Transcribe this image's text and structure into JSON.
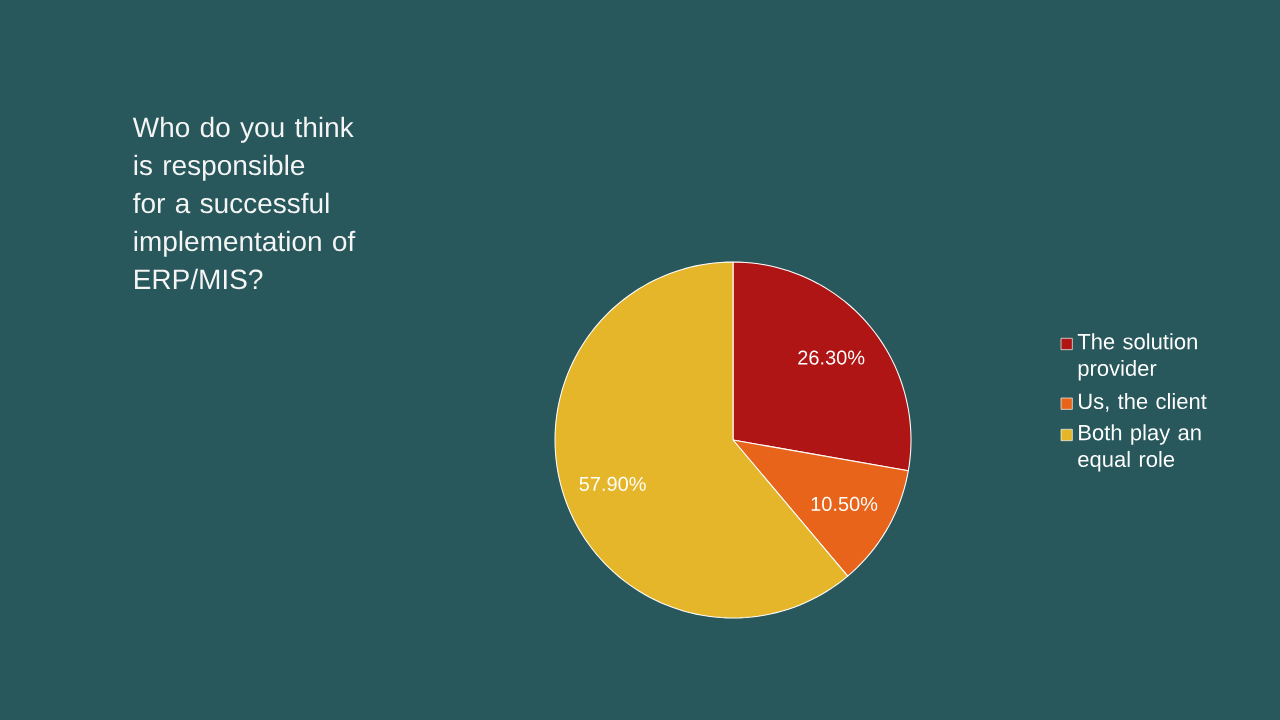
{
  "chart_data": {
    "type": "pie",
    "title": "Who do you think is responsible for a successful implementation of ERP/MIS?",
    "categories": [
      "The solution provider",
      "Us, the client",
      "Both play an equal role"
    ],
    "values": [
      26.3,
      10.5,
      57.9
    ],
    "value_labels": [
      "26.30%",
      "10.50%",
      "57.90%"
    ],
    "colors": [
      "#b01515",
      "#e8641a",
      "#e5b62a"
    ],
    "legend": "right"
  }
}
